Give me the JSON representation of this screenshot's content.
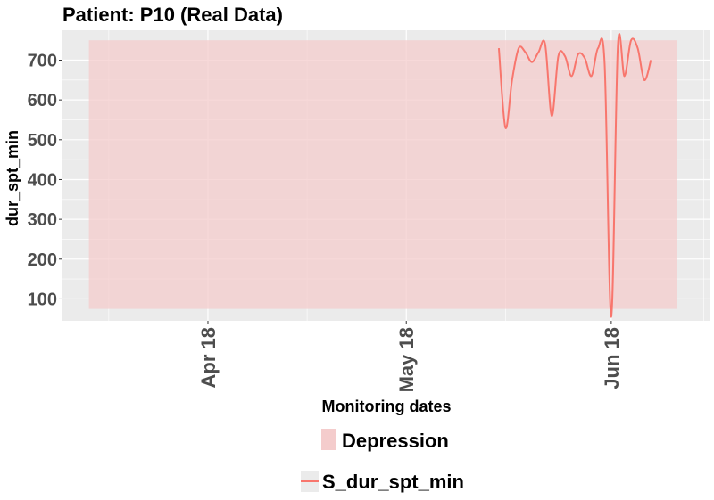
{
  "chart_data": {
    "type": "line",
    "title": "Patient: P10 (Real Data)",
    "xlabel": "Monitoring dates",
    "ylabel": "dur_spt_min",
    "x_tick_labels": [
      "Apr 18",
      "May 18",
      "Jun 18"
    ],
    "x_tick_dates": [
      "2018-04-01",
      "2018-05-01",
      "2018-06-01"
    ],
    "y_ticks": [
      100,
      200,
      300,
      400,
      500,
      600,
      700
    ],
    "xlim": [
      "2018-03-10",
      "2018-06-16"
    ],
    "ylim": [
      45,
      775
    ],
    "grid": true,
    "shaded_region": {
      "label": "Depression",
      "color": "#f4cccc",
      "x_start": "2018-03-14",
      "x_end": "2018-06-11",
      "y_min": 75,
      "y_max": 750
    },
    "series": [
      {
        "name": "S_dur_spt_min",
        "color": "#f8766d",
        "points": [
          [
            "2018-05-15",
            730
          ],
          [
            "2018-05-16",
            530
          ],
          [
            "2018-05-17",
            650
          ],
          [
            "2018-05-18",
            730
          ],
          [
            "2018-05-19",
            720
          ],
          [
            "2018-05-20",
            695
          ],
          [
            "2018-05-21",
            720
          ],
          [
            "2018-05-22",
            740
          ],
          [
            "2018-05-23",
            560
          ],
          [
            "2018-05-24",
            710
          ],
          [
            "2018-05-25",
            710
          ],
          [
            "2018-05-26",
            660
          ],
          [
            "2018-05-27",
            715
          ],
          [
            "2018-05-28",
            705
          ],
          [
            "2018-05-29",
            660
          ],
          [
            "2018-05-30",
            730
          ],
          [
            "2018-05-31",
            690
          ],
          [
            "2018-06-01",
            55
          ],
          [
            "2018-06-02",
            735
          ],
          [
            "2018-06-03",
            660
          ],
          [
            "2018-06-04",
            750
          ],
          [
            "2018-06-05",
            730
          ],
          [
            "2018-06-06",
            650
          ],
          [
            "2018-06-07",
            700
          ]
        ]
      }
    ],
    "legend": {
      "position": "bottom",
      "fill_title": "Depression",
      "line_title": "S_dur_spt_min"
    },
    "panel_background": "#ebebeb",
    "grid_color": "#ffffff"
  }
}
